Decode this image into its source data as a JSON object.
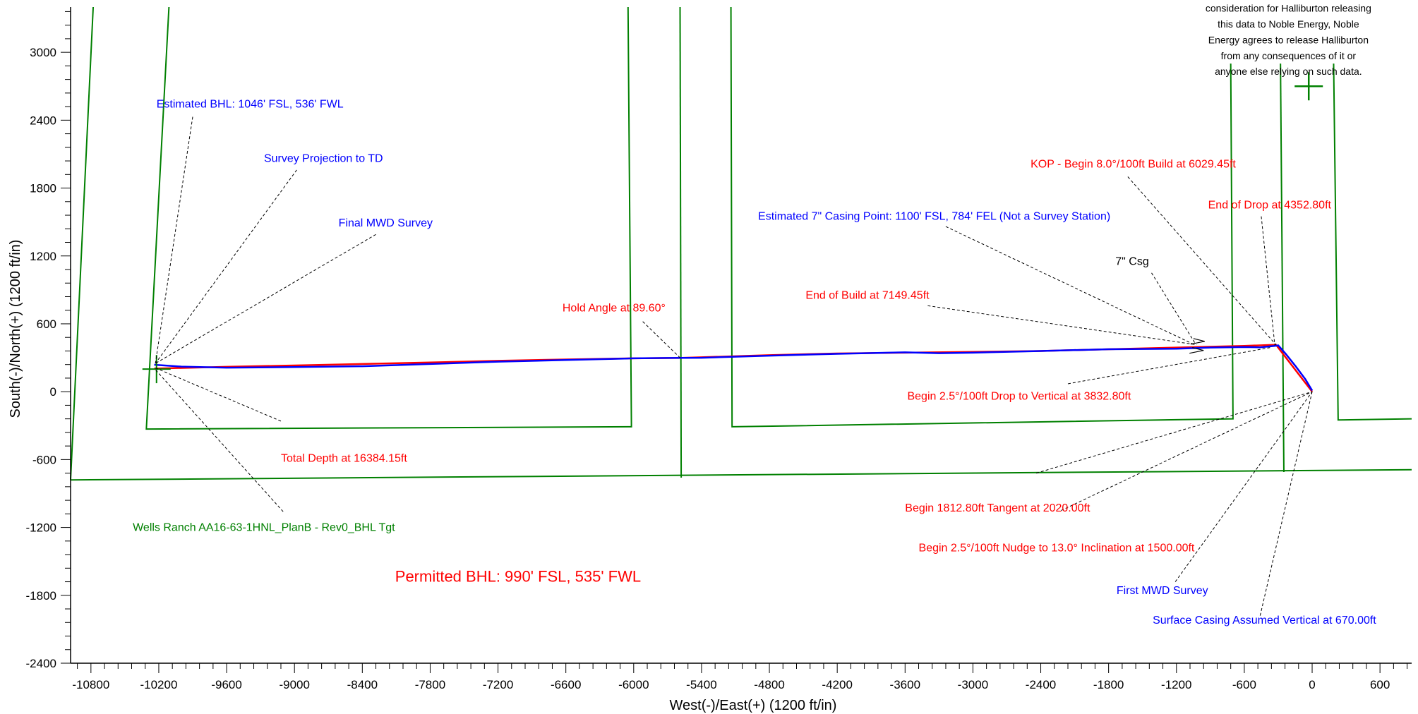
{
  "chart_data": {
    "type": "line",
    "xlabel": "West(-)/East(+) (1200 ft/in)",
    "ylabel": "South(-)/North(+) (1200 ft/in)",
    "xlim": [
      -10980,
      880
    ],
    "ylim": [
      -2400,
      3400
    ],
    "x_ticks": [
      -10800,
      -10200,
      -9600,
      -9000,
      -8400,
      -7800,
      -7200,
      -6600,
      -6000,
      -5400,
      -4800,
      -4200,
      -3600,
      -3000,
      -2400,
      -1800,
      -1200,
      -600,
      0,
      600
    ],
    "y_ticks": [
      -2400,
      -1800,
      -1200,
      -600,
      0,
      600,
      1200,
      1800,
      2400,
      3000
    ],
    "grid": false,
    "colors": {
      "plan": "#ff0000",
      "actual": "#0000ff",
      "boundary": "#008000",
      "annotation": "#000000"
    },
    "series": [
      {
        "name": "",
        "color": "#ff0000",
        "x": [
          0,
          -320,
          -600,
          -1200,
          -1800,
          -2400,
          -3000,
          -3600,
          -4200,
          -4800,
          -5600,
          -6000,
          -6600,
          -7200,
          -7800,
          -8400,
          -9000,
          -9600,
          -10200,
          -10240
        ],
        "y": [
          0,
          415,
          405,
          390,
          375,
          360,
          352,
          345,
          338,
          323,
          298,
          295,
          285,
          273,
          258,
          245,
          232,
          220,
          205,
          205
        ]
      },
      {
        "name": "",
        "color": "#0000ff",
        "x": [
          0,
          -60,
          -150,
          -230,
          -300,
          -330,
          -380,
          -460,
          -600,
          -900,
          -1200,
          -1800,
          -2400,
          -3000,
          -3300,
          -3600,
          -4200,
          -4800,
          -5400,
          -5700,
          -6000,
          -6600,
          -7200,
          -7800,
          -8400,
          -9000,
          -9600,
          -10000,
          -10240
        ],
        "y": [
          10,
          110,
          230,
          330,
          410,
          405,
          400,
          392,
          395,
          390,
          380,
          375,
          360,
          345,
          340,
          348,
          335,
          318,
          300,
          298,
          295,
          280,
          265,
          245,
          225,
          218,
          212,
          222,
          238
        ]
      }
    ],
    "boundaries": [
      {
        "x": [
          -10780,
          -10980
        ],
        "y": [
          3400,
          -780
        ]
      },
      {
        "x": [
          -10980,
          880
        ],
        "y": [
          -780,
          -690
        ]
      },
      {
        "x": [
          -10110,
          -10310,
          -6020,
          -6050
        ],
        "y": [
          3400,
          -330,
          -310,
          3400
        ]
      },
      {
        "x": [
          -5590,
          -5580
        ],
        "y": [
          3400,
          -760
        ]
      },
      {
        "x": [
          -5140,
          -5130,
          -700,
          -720
        ],
        "y": [
          3400,
          -310,
          -240,
          2900
        ]
      },
      {
        "x": [
          -280,
          -250
        ],
        "y": [
          2900,
          -710
        ]
      },
      {
        "x": [
          190,
          230,
          880
        ],
        "y": [
          2900,
          -250,
          -240
        ]
      }
    ],
    "target_marker": {
      "x": -10220,
      "y": 200
    },
    "plus_marker": {
      "x": -30,
      "y": 2700
    },
    "casing_markers": [
      {
        "x": -1000,
        "y": 420
      },
      {
        "x": -1010,
        "y": 340
      }
    ],
    "annotations": [
      {
        "text": "Estimated BHL:  1046' FSL, 536' FWL",
        "color": "#0000ff",
        "size": 16,
        "tx": -10220,
        "ty": 2510,
        "px": -10230,
        "py": 250,
        "lx": -9900,
        "ly": 2430
      },
      {
        "text": "Survey Projection to TD",
        "color": "#0000ff",
        "size": 16,
        "tx": -9270,
        "ty": 2030,
        "px": -10230,
        "py": 250,
        "lx": -8980,
        "ly": 1960
      },
      {
        "text": "Final MWD Survey",
        "color": "#0000ff",
        "size": 16,
        "tx": -8610,
        "ty": 1460,
        "px": -10230,
        "py": 250,
        "lx": -8280,
        "ly": 1390
      },
      {
        "text": "Hold Angle at 89.60°",
        "color": "#ff0000",
        "size": 16,
        "tx": -6630,
        "ty": 710,
        "px": -5590,
        "py": 300,
        "lx": -5920,
        "ly": 620
      },
      {
        "text": "End of Build at 7149.45ft",
        "color": "#ff0000",
        "size": 16,
        "tx": -4480,
        "ty": 820,
        "px": -1020,
        "py": 415,
        "lx": -3400,
        "ly": 760
      },
      {
        "text": "7\" Csg",
        "color": "#000000",
        "size": 16,
        "tx": -1740,
        "ty": 1120,
        "px": -1030,
        "py": 420,
        "lx": -1420,
        "ly": 1050
      },
      {
        "text": "Estimated 7\" Casing Point:  1100' FSL, 784' FEL (Not a Survey Station)",
        "color": "#0000ff",
        "size": 16,
        "tx": -4900,
        "ty": 1520,
        "px": -1040,
        "py": 415,
        "lx": -3240,
        "ly": 1460
      },
      {
        "text": "KOP - Begin 8.0°/100ft Build at 6029.45ft",
        "color": "#ff0000",
        "size": 16,
        "tx": -2490,
        "ty": 1980,
        "px": -320,
        "py": 415,
        "lx": -1630,
        "ly": 1900
      },
      {
        "text": "End of Drop at 4352.80ft",
        "color": "#ff0000",
        "size": 16,
        "tx": -920,
        "ty": 1620,
        "px": -330,
        "py": 410,
        "lx": -450,
        "ly": 1550
      },
      {
        "text": "Begin 2.5°/100ft Drop to Vertical at 3832.80ft",
        "color": "#ff0000",
        "size": 16,
        "tx": -3580,
        "ty": -70,
        "px": -370,
        "py": 390,
        "lx": -2160,
        "ly": 70
      },
      {
        "text": "Total Depth at 16384.15ft",
        "color": "#ff0000",
        "size": 16,
        "tx": -9120,
        "ty": -620,
        "px": -10230,
        "py": 210,
        "lx": -9120,
        "ly": -260
      },
      {
        "text": "Wells Ranch AA16-63-1HNL_PlanB - Rev0_BHL Tgt",
        "color": "#008000",
        "size": 16,
        "tx": -10430,
        "ty": -1230,
        "px": -10230,
        "py": 195,
        "lx": -9100,
        "ly": -1060
      },
      {
        "text": "Begin 1812.80ft Tangent at 2020.00ft",
        "color": "#ff0000",
        "size": 16,
        "tx": -3600,
        "ty": -1060,
        "px": 0,
        "py": 0,
        "lx": -2440,
        "ly": -720
      },
      {
        "text": "Begin 2.5°/100ft Nudge to 13.0° Inclination at 1500.00ft",
        "color": "#ff0000",
        "size": 16,
        "tx": -3480,
        "ty": -1410,
        "px": 0,
        "py": 0,
        "lx": -2220,
        "ly": -1050
      },
      {
        "text": "First MWD Survey",
        "color": "#0000ff",
        "size": 16,
        "tx": -1730,
        "ty": -1790,
        "px": 0,
        "py": 0,
        "lx": -1210,
        "ly": -1680
      },
      {
        "text": "Surface Casing Assumed Vertical at 670.00ft",
        "color": "#0000ff",
        "size": 16,
        "tx": -1410,
        "ty": -2050,
        "px": 0,
        "py": 0,
        "lx": -460,
        "ly": -1980
      }
    ],
    "disclaimer": {
      "lines": [
        "consideration for Halliburton releasing",
        "this data to Noble Energy, Noble",
        "Energy agrees to release Halliburton",
        "from any consequences of it or",
        "anyone else relying on such data."
      ],
      "cx": -210,
      "ty": 3360,
      "line_step": 140
    },
    "permitted_bhl": {
      "text": "Permitted BHL:  990' FSL, 535' FWL",
      "color": "#ff0000",
      "size": 22,
      "tx": -8110,
      "ty": -1680
    }
  }
}
